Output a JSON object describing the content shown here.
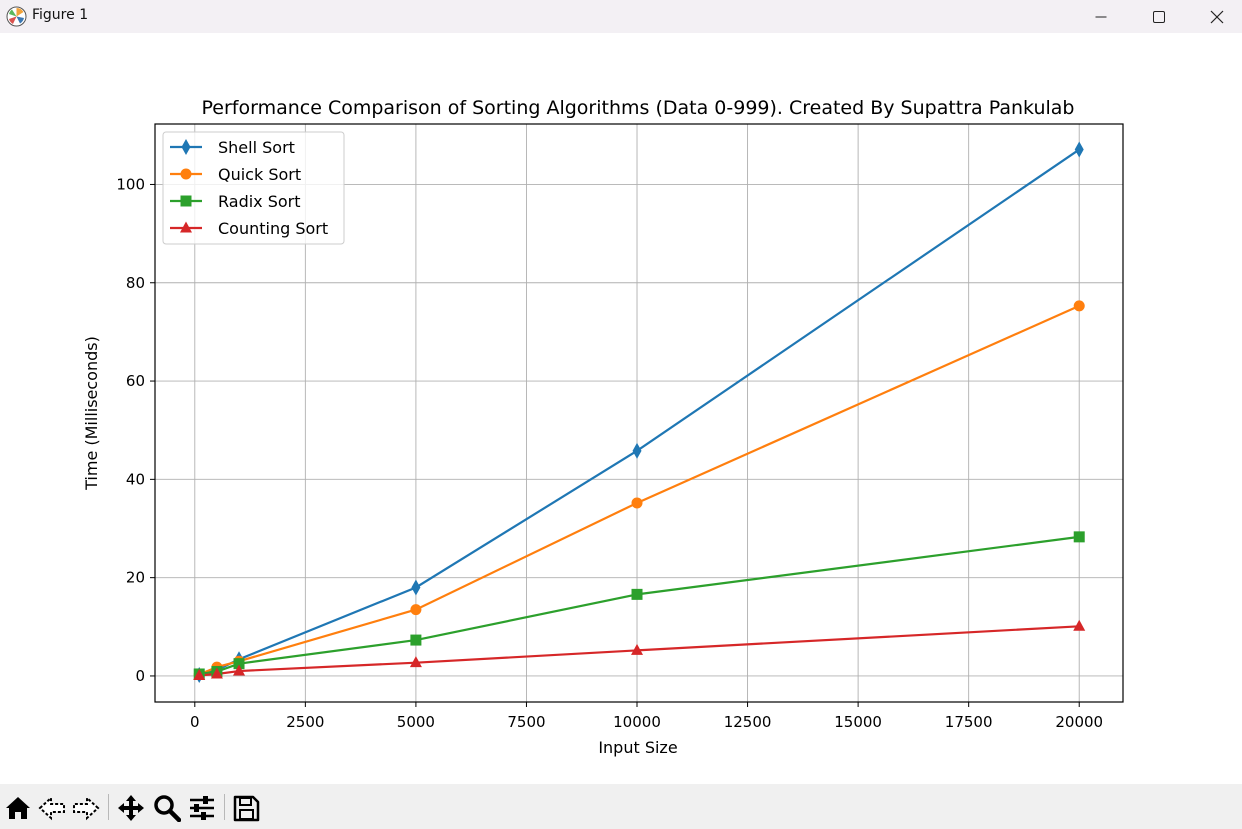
{
  "window": {
    "title": "Figure 1"
  },
  "toolbar": {
    "buttons": [
      {
        "name": "home",
        "icon": "home-icon"
      },
      {
        "name": "back",
        "icon": "back-arrow-icon"
      },
      {
        "name": "forward",
        "icon": "forward-arrow-icon"
      },
      {
        "name": "pan",
        "icon": "move-icon"
      },
      {
        "name": "zoom",
        "icon": "magnifier-icon"
      },
      {
        "name": "configure-subplots",
        "icon": "sliders-icon"
      },
      {
        "name": "save",
        "icon": "floppy-disk-icon"
      }
    ]
  },
  "chart_data": {
    "type": "line",
    "title": "Performance Comparison of Sorting Algorithms (Data 0-999). Created By Supattra Pankulab",
    "xlabel": "Input Size",
    "ylabel": "Time (Milliseconds)",
    "xlim": [
      -900,
      20990
    ],
    "ylim": [
      -5.3,
      112.3
    ],
    "xticks": [
      0,
      2500,
      5000,
      7500,
      10000,
      12500,
      15000,
      17500,
      20000
    ],
    "yticks": [
      0,
      20,
      40,
      60,
      80,
      100
    ],
    "grid": true,
    "legend_position": "upper-left",
    "series": [
      {
        "name": "Shell Sort",
        "color": "#1f77b4",
        "marker": "thin_diamond",
        "x": [
          100,
          500,
          1000,
          5000,
          10000,
          20000
        ],
        "y": [
          0.2,
          1.2,
          3.4,
          18.0,
          45.8,
          107.1
        ]
      },
      {
        "name": "Quick Sort",
        "color": "#ff7f0e",
        "marker": "circle",
        "x": [
          100,
          500,
          1000,
          5000,
          10000,
          20000
        ],
        "y": [
          0.3,
          1.8,
          3.0,
          13.5,
          35.2,
          75.3
        ]
      },
      {
        "name": "Radix Sort",
        "color": "#2ca02c",
        "marker": "square",
        "x": [
          100,
          500,
          1000,
          5000,
          10000,
          20000
        ],
        "y": [
          0.4,
          0.9,
          2.5,
          7.3,
          16.6,
          28.3
        ]
      },
      {
        "name": "Counting Sort",
        "color": "#d62728",
        "marker": "triangle",
        "x": [
          100,
          500,
          1000,
          5000,
          10000,
          20000
        ],
        "y": [
          0.1,
          0.4,
          1.0,
          2.7,
          5.2,
          10.1
        ]
      }
    ]
  }
}
